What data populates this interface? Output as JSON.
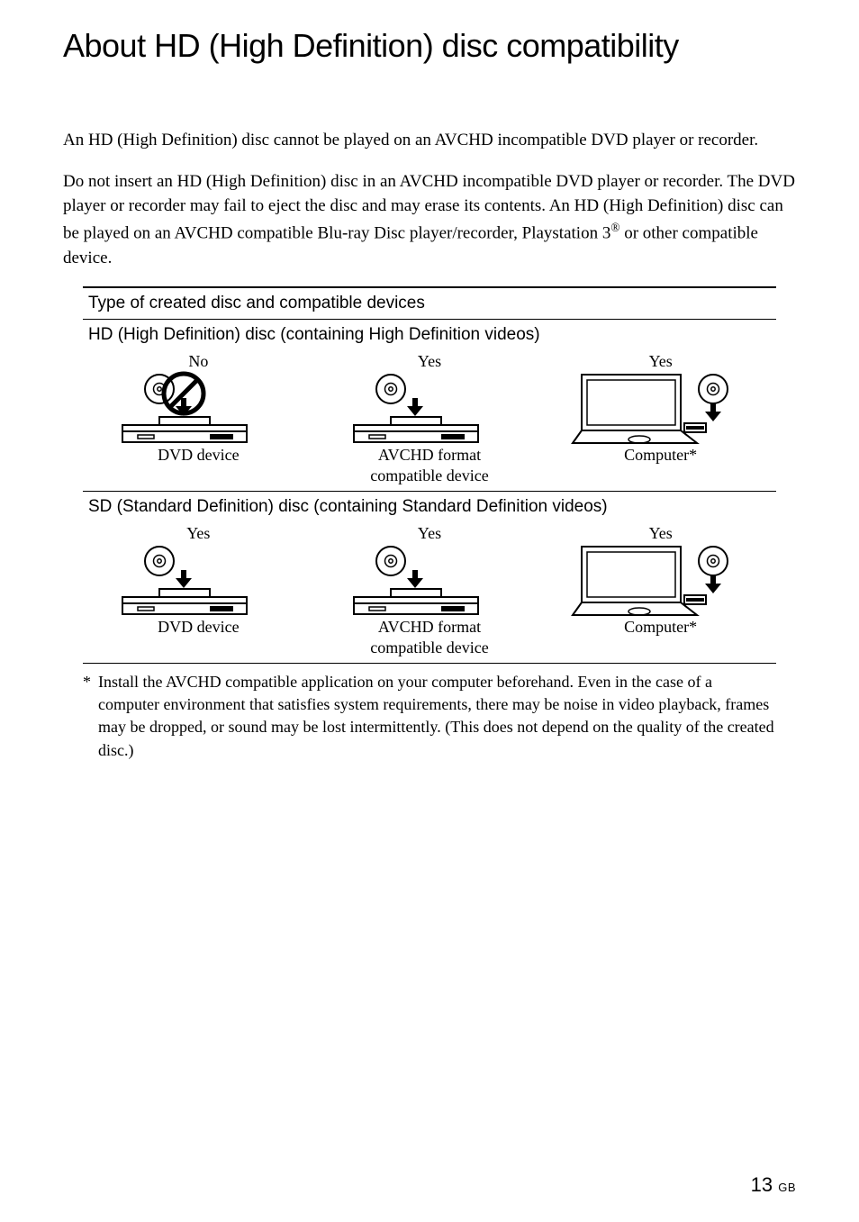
{
  "title": "About HD (High Definition) disc compatibility",
  "body": {
    "p1": "An HD (High Definition) disc cannot be played on an AVCHD incompatible DVD player or recorder.",
    "p2a": "Do not insert an HD (High Definition) disc in an AVCHD incompatible DVD player or recorder. The DVD player or recorder may fail to eject the disc and may erase its contents. An HD (High Definition) disc can be played on an AVCHD compatible Blu-ray Disc player/recorder, Playstation 3",
    "p2_sup": "®",
    "p2b": " or other compatible device."
  },
  "table": {
    "heading": "Type of created disc and compatible devices",
    "rows": [
      {
        "sub": "HD (High Definition) disc (containing High Definition videos)",
        "cells": [
          {
            "yn": "No",
            "label": "DVD device",
            "icon": "dvd",
            "prohibit": true
          },
          {
            "yn": "Yes",
            "label": "AVCHD format\ncompatible device",
            "icon": "dvd",
            "prohibit": false
          },
          {
            "yn": "Yes",
            "label": "Computer*",
            "icon": "computer",
            "prohibit": false
          }
        ]
      },
      {
        "sub": "SD (Standard Definition) disc (containing Standard Definition videos)",
        "cells": [
          {
            "yn": "Yes",
            "label": "DVD device",
            "icon": "dvd",
            "prohibit": false
          },
          {
            "yn": "Yes",
            "label": "AVCHD format\ncompatible device",
            "icon": "dvd",
            "prohibit": false
          },
          {
            "yn": "Yes",
            "label": "Computer*",
            "icon": "computer",
            "prohibit": false
          }
        ]
      }
    ]
  },
  "footnote": {
    "mark": "*",
    "text": "Install the AVCHD compatible application on your computer beforehand. Even in the case of a computer environment that satisfies system requirements, there may be noise in video playback, frames may be dropped, or sound may be lost intermittently. (This does not depend on the quality of the created disc.)"
  },
  "page_number": "13",
  "page_suffix": "GB",
  "colors": {
    "text": "#000000",
    "background": "#ffffff",
    "prohibit_stroke": "#000000"
  },
  "typography": {
    "title_family": "sans-serif",
    "title_size_pt": 27,
    "body_family": "serif",
    "body_size_pt": 14
  }
}
